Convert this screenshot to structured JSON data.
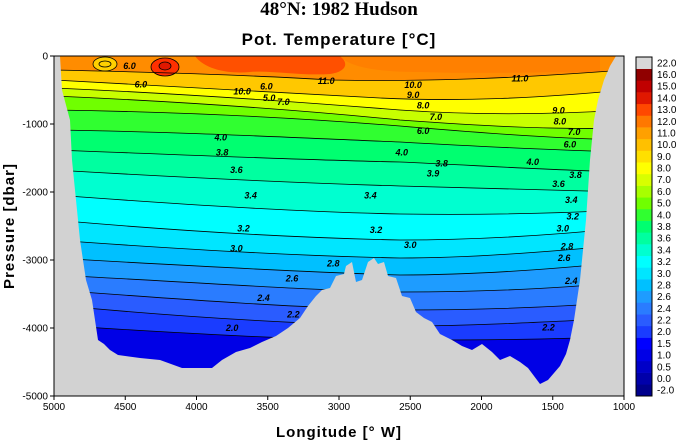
{
  "chart_data": {
    "type": "heatmap",
    "title": "48°N: 1982 Hudson",
    "subtitle": "Pot. Temperature [°C]",
    "xlabel": "Longitude [° W]",
    "ylabel": "Pressure [dbar]",
    "xlim": [
      5000,
      1000
    ],
    "ylim": [
      -5000,
      0
    ],
    "x_ticks": [
      "5000",
      "4500",
      "4000",
      "3500",
      "3000",
      "2500",
      "2000",
      "1500",
      "1000"
    ],
    "y_ticks": [
      "0",
      "-1000",
      "-2000",
      "-3000",
      "-4000",
      "-5000"
    ],
    "colorbar_levels": [
      "-2.0",
      "0.0",
      "0.5",
      "1.0",
      "1.5",
      "2.0",
      "2.2",
      "2.4",
      "2.6",
      "2.8",
      "3.0",
      "3.2",
      "3.4",
      "3.6",
      "3.8",
      "4.0",
      "5.0",
      "6.0",
      "7.0",
      "8.0",
      "9.0",
      "10.0",
      "11.0",
      "12.0",
      "13.0",
      "14.0",
      "15.0",
      "16.0",
      "22.0"
    ],
    "colorbar_colors": [
      "#000070",
      "#00008c",
      "#0000aa",
      "#0000c8",
      "#0000e6",
      "#0000ff",
      "#1a3cff",
      "#2a5cff",
      "#2a7cff",
      "#1e9cff",
      "#00c0ff",
      "#00e6ff",
      "#00ffff",
      "#00ffd0",
      "#00ffa0",
      "#00ff70",
      "#30ff30",
      "#70ff00",
      "#a8ff00",
      "#d8ff00",
      "#ffff00",
      "#ffe000",
      "#ffc000",
      "#ffa000",
      "#ff7800",
      "#ff4800",
      "#e01800",
      "#c00000",
      "#900000",
      "#d8d8d8"
    ],
    "contour_labels": [
      {
        "text": "6.0",
        "x": 4470,
        "y": -150
      },
      {
        "text": "6.0",
        "x": 4390,
        "y": -420
      },
      {
        "text": "10.0",
        "x": 3680,
        "y": -520
      },
      {
        "text": "6.0",
        "x": 3510,
        "y": -450
      },
      {
        "text": "5.0",
        "x": 3490,
        "y": -620
      },
      {
        "text": "7.0",
        "x": 3390,
        "y": -680
      },
      {
        "text": "11.0",
        "x": 3090,
        "y": -370
      },
      {
        "text": "10.0",
        "x": 2480,
        "y": -430
      },
      {
        "text": "9.0",
        "x": 2480,
        "y": -570
      },
      {
        "text": "8.0",
        "x": 2410,
        "y": -730
      },
      {
        "text": "7.0",
        "x": 2320,
        "y": -900
      },
      {
        "text": "6.0",
        "x": 2410,
        "y": -1100
      },
      {
        "text": "11.0",
        "x": 1730,
        "y": -330
      },
      {
        "text": "9.0",
        "x": 1460,
        "y": -800
      },
      {
        "text": "8.0",
        "x": 1450,
        "y": -960
      },
      {
        "text": "7.0",
        "x": 1350,
        "y": -1120
      },
      {
        "text": "6.0",
        "x": 1380,
        "y": -1300
      },
      {
        "text": "4.0",
        "x": 3830,
        "y": -1200
      },
      {
        "text": "3.8",
        "x": 3820,
        "y": -1420
      },
      {
        "text": "3.6",
        "x": 3720,
        "y": -1680
      },
      {
        "text": "4.0",
        "x": 2560,
        "y": -1420
      },
      {
        "text": "3.8",
        "x": 2280,
        "y": -1580
      },
      {
        "text": "3.9",
        "x": 2340,
        "y": -1730
      },
      {
        "text": "4.0",
        "x": 1640,
        "y": -1560
      },
      {
        "text": "3.8",
        "x": 1340,
        "y": -1750
      },
      {
        "text": "3.6",
        "x": 1460,
        "y": -1880
      },
      {
        "text": "3.4",
        "x": 3620,
        "y": -2050
      },
      {
        "text": "3.4",
        "x": 2780,
        "y": -2050
      },
      {
        "text": "3.4",
        "x": 1370,
        "y": -2120
      },
      {
        "text": "3.2",
        "x": 3670,
        "y": -2540
      },
      {
        "text": "3.2",
        "x": 2740,
        "y": -2560
      },
      {
        "text": "3.2",
        "x": 1360,
        "y": -2360
      },
      {
        "text": "3.0",
        "x": 3720,
        "y": -2830
      },
      {
        "text": "3.0",
        "x": 2500,
        "y": -2780
      },
      {
        "text": "3.0",
        "x": 1430,
        "y": -2540
      },
      {
        "text": "2.8",
        "x": 3040,
        "y": -3050
      },
      {
        "text": "2.8",
        "x": 1400,
        "y": -2800
      },
      {
        "text": "2.6",
        "x": 3330,
        "y": -3270
      },
      {
        "text": "2.6",
        "x": 1420,
        "y": -2970
      },
      {
        "text": "2.4",
        "x": 3530,
        "y": -3560
      },
      {
        "text": "2.4",
        "x": 1370,
        "y": -3310
      },
      {
        "text": "2.2",
        "x": 3320,
        "y": -3800
      },
      {
        "text": "2.0",
        "x": 3750,
        "y": -4000
      },
      {
        "text": "2.2",
        "x": 1530,
        "y": -3990
      }
    ]
  }
}
